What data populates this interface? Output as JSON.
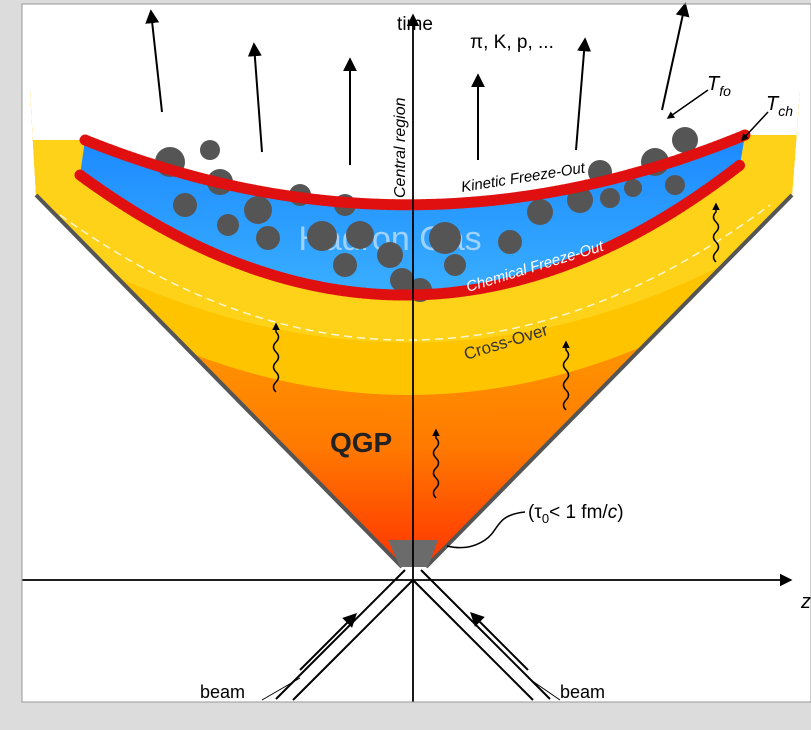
{
  "labels": {
    "time": "time",
    "particles": "π, K, p, ...",
    "t_fo": {
      "main": "T",
      "sub": "fo"
    },
    "t_ch": {
      "main": "T",
      "sub": "ch"
    },
    "central_region": "Central region",
    "kinetic": "Kinetic Freeze-Out",
    "chemical": "Chemical Freeze-Out",
    "hadron_gas": "Hadron Gas",
    "cross_over": "Cross-Over",
    "qgp": "QGP",
    "tau0": {
      "open": "(τ",
      "sub": "0",
      "text": "< 1 fm/",
      "italic": "c",
      "close": ")"
    },
    "z": "z",
    "beam_left": "beam",
    "beam_right": "beam"
  }
}
